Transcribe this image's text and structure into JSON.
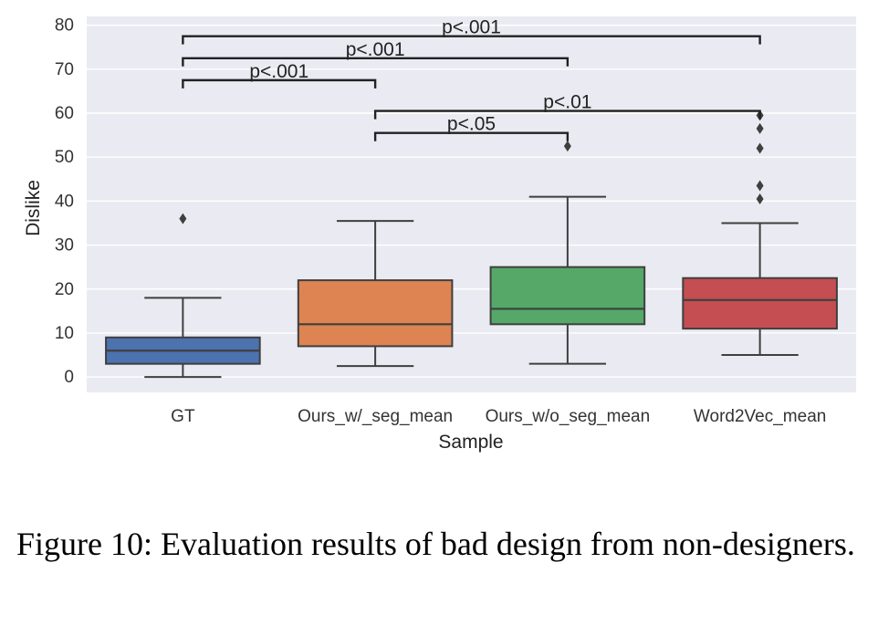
{
  "chart_data": {
    "type": "box",
    "title": "",
    "xlabel": "Sample",
    "ylabel": "Dislike",
    "ylim": [
      -3.5,
      82
    ],
    "yticks": [
      0,
      10,
      20,
      30,
      40,
      50,
      60,
      70,
      80
    ],
    "grid": true,
    "categories": [
      "GT",
      "Ours_w/_seg_mean",
      "Ours_w/o_seg_mean",
      "Word2Vec_mean"
    ],
    "boxes": [
      {
        "category": "GT",
        "min": 0,
        "q1": 3,
        "median": 6,
        "q3": 9,
        "max": 18,
        "outliers": [
          36
        ],
        "color": "#4c72b0"
      },
      {
        "category": "Ours_w/_seg_mean",
        "min": 2.5,
        "q1": 7,
        "median": 12,
        "q3": 22,
        "max": 35.5,
        "outliers": [],
        "color": "#dd8452"
      },
      {
        "category": "Ours_w/o_seg_mean",
        "min": 3,
        "q1": 12,
        "median": 15.5,
        "q3": 25,
        "max": 41,
        "outliers": [
          52.5
        ],
        "color": "#55a868"
      },
      {
        "category": "Word2Vec_mean",
        "min": 5,
        "q1": 11,
        "median": 17.5,
        "q3": 22.5,
        "max": 35,
        "outliers": [
          40.5,
          43.5,
          52,
          56.5,
          59.5
        ],
        "color": "#c44e52"
      }
    ],
    "significance": [
      {
        "from": "GT",
        "to": "Word2Vec_mean",
        "label": "p<.001",
        "y": 77.5
      },
      {
        "from": "GT",
        "to": "Ours_w/o_seg_mean",
        "label": "p<.001",
        "y": 72.5
      },
      {
        "from": "GT",
        "to": "Ours_w/_seg_mean",
        "label": "p<.001",
        "y": 67.5
      },
      {
        "from": "Ours_w/_seg_mean",
        "to": "Word2Vec_mean",
        "label": "p<.01",
        "y": 60.5
      },
      {
        "from": "Ours_w/_seg_mean",
        "to": "Ours_w/o_seg_mean",
        "label": "p<.05",
        "y": 55.5
      }
    ]
  },
  "caption": "Figure 10:  Evaluation results of bad design from non-designers."
}
